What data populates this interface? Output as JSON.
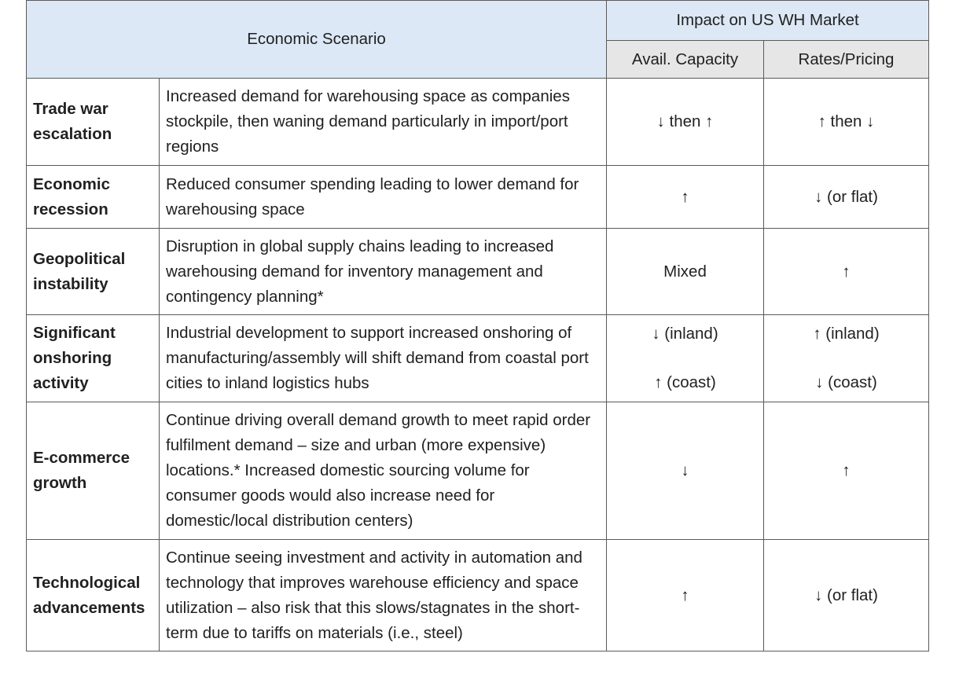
{
  "header": {
    "scenario": "Economic Scenario",
    "impact": "Impact on US WH Market",
    "capacity": "Avail. Capacity",
    "pricing": "Rates/Pricing"
  },
  "rows": [
    {
      "scenario": "Trade war escalation",
      "description": "Increased demand for warehousing space as companies stockpile, then waning demand particularly in import/port regions",
      "capacity": "↓ then ↑",
      "pricing": "↑ then ↓"
    },
    {
      "scenario": "Economic recession",
      "description": "Reduced consumer spending leading to lower demand for warehousing space",
      "capacity": "↑",
      "pricing": "↓  (or flat)"
    },
    {
      "scenario": "Geopolitical instability",
      "description": "Disruption in global supply chains leading to increased warehousing demand for inventory management and contingency planning*",
      "capacity": "Mixed",
      "pricing": "↑"
    },
    {
      "scenario": "Significant onshoring activity",
      "description": "Industrial development to support increased onshoring of manufacturing/assembly will shift demand from coastal port cities to inland logistics hubs",
      "capacity": "↓ (inland)",
      "capacity2": "↑ (coast)",
      "pricing": "↑ (inland)",
      "pricing2": "↓ (coast)"
    },
    {
      "scenario": "E-commerce growth",
      "description": "Continue driving overall demand growth to meet rapid order fulfilment demand – size and urban (more expensive) locations.* Increased domestic sourcing volume for consumer goods would also increase need for domestic/local distribution centers)",
      "capacity": "↓",
      "pricing": "↑"
    },
    {
      "scenario": "Technological advancements",
      "description": "Continue seeing investment and activity in automation and technology that improves warehouse efficiency and space utilization – also risk that this slows/stagnates in the short-term due to tariffs on materials (i.e., steel)",
      "capacity": "↑",
      "pricing": "↓ (or flat)"
    }
  ]
}
